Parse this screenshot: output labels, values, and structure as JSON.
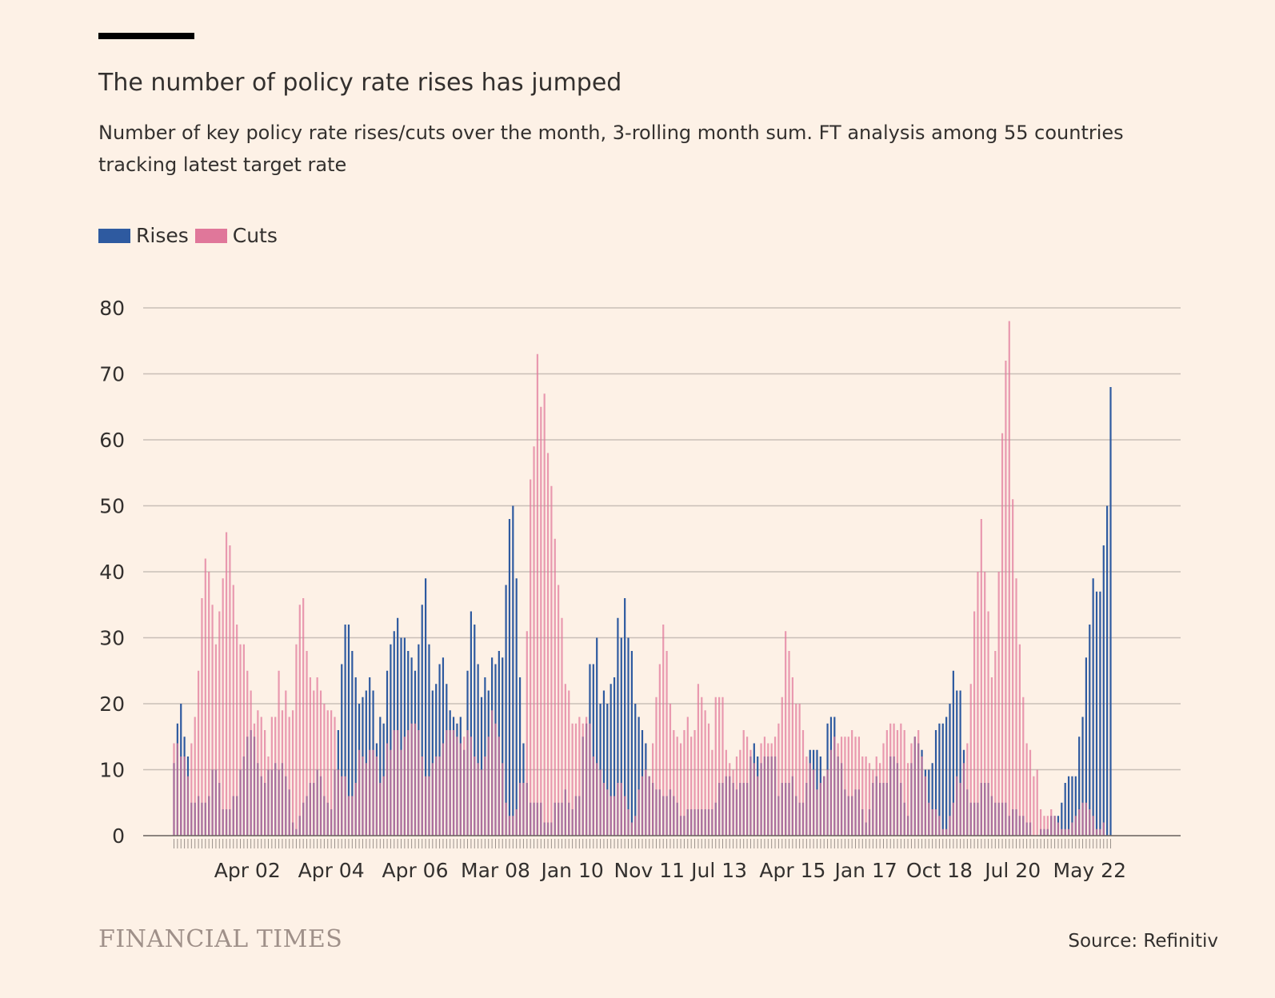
{
  "title": "The number of policy rate rises has jumped",
  "subtitle": "Number of key policy rate rises/cuts over the month, 3-rolling month sum. FT analysis among 55 countries tracking latest target rate",
  "source": "Source: Refinitiv",
  "brand": "FINANCIAL TIMES",
  "colors": {
    "background": "#fdf1e6",
    "rises": "#2e5aa0",
    "cuts": "#e0779a",
    "grid": "#c9bfb7",
    "text": "#33302e"
  },
  "chart_data": {
    "type": "bar",
    "title": "The number of policy rate rises has jumped",
    "xlabel": "",
    "ylabel": "",
    "ylim": [
      0,
      80
    ],
    "yticks": [
      0,
      10,
      20,
      30,
      40,
      50,
      60,
      70,
      80
    ],
    "grid": true,
    "legend_position": "top-left",
    "x_tick_labels": [
      {
        "label": "Apr 02",
        "index": 21
      },
      {
        "label": "Apr 04",
        "index": 45
      },
      {
        "label": "Apr 06",
        "index": 69
      },
      {
        "label": "Mar 08",
        "index": 92
      },
      {
        "label": "Jan 10",
        "index": 114
      },
      {
        "label": "Nov 11",
        "index": 136
      },
      {
        "label": "Jul 13",
        "index": 156
      },
      {
        "label": "Apr 15",
        "index": 177
      },
      {
        "label": "Jan 17",
        "index": 198
      },
      {
        "label": "Oct 18",
        "index": 219
      },
      {
        "label": "Jul 20",
        "index": 240
      },
      {
        "label": "May 22",
        "index": 262
      }
    ],
    "series": [
      {
        "name": "Rises",
        "values": [
          11,
          17,
          20,
          15,
          12,
          5,
          5,
          6,
          5,
          5,
          6,
          10,
          10,
          8,
          4,
          4,
          4,
          6,
          6,
          10,
          12,
          15,
          16,
          15,
          11,
          9,
          8,
          10,
          10,
          11,
          10,
          11,
          9,
          7,
          2,
          1,
          3,
          5,
          6,
          8,
          8,
          10,
          9,
          6,
          5,
          4,
          10,
          16,
          26,
          32,
          32,
          28,
          24,
          20,
          21,
          22,
          24,
          22,
          14,
          18,
          17,
          25,
          29,
          31,
          33,
          30,
          30,
          28,
          27,
          25,
          29,
          35,
          39,
          29,
          22,
          23,
          26,
          27,
          23,
          19,
          18,
          17,
          18,
          13,
          25,
          34,
          32,
          26,
          21,
          24,
          22,
          27,
          26,
          28,
          27,
          38,
          48,
          50,
          39,
          24,
          14,
          8,
          5,
          5,
          5,
          5,
          2,
          2,
          2,
          5,
          5,
          5,
          7,
          5,
          4,
          6,
          6,
          15,
          17,
          26,
          26,
          30,
          20,
          22,
          20,
          23,
          24,
          33,
          30,
          36,
          30,
          28,
          20,
          18,
          16,
          14,
          9,
          8,
          7,
          7,
          6,
          6,
          7,
          6,
          5,
          3,
          3,
          4,
          4,
          4,
          4,
          4,
          4,
          4,
          4,
          5,
          8,
          8,
          9,
          9,
          8,
          7,
          8,
          8,
          8,
          12,
          14,
          12,
          11,
          12,
          12,
          12,
          12,
          6,
          8,
          8,
          8,
          9,
          6,
          5,
          5,
          8,
          13,
          13,
          13,
          12,
          9,
          17,
          18,
          18,
          12,
          11,
          7,
          6,
          6,
          7,
          7,
          4,
          2,
          4,
          8,
          9,
          8,
          8,
          8,
          12,
          12,
          11,
          8,
          5,
          3,
          11,
          15,
          14,
          13,
          10,
          10,
          11,
          16,
          17,
          17,
          18,
          20,
          25,
          22,
          22,
          13,
          7,
          5,
          5,
          5,
          8,
          8,
          8,
          6,
          5,
          5,
          5,
          5,
          3,
          4,
          4,
          3,
          3,
          2,
          2,
          0,
          0,
          1,
          1,
          1,
          3,
          3,
          3,
          5,
          8,
          9,
          9,
          9,
          15,
          18,
          27,
          32,
          39,
          37,
          37,
          44,
          50,
          68
        ]
      },
      {
        "name": "Cuts",
        "values": [
          14,
          14,
          12,
          12,
          9,
          14,
          18,
          25,
          36,
          42,
          40,
          35,
          29,
          34,
          39,
          46,
          44,
          38,
          32,
          29,
          29,
          25,
          22,
          17,
          19,
          18,
          16,
          12,
          18,
          18,
          25,
          19,
          22,
          18,
          19,
          29,
          35,
          36,
          28,
          24,
          22,
          24,
          22,
          20,
          19,
          19,
          18,
          10,
          9,
          9,
          6,
          6,
          8,
          13,
          12,
          11,
          13,
          13,
          12,
          8,
          9,
          14,
          13,
          16,
          16,
          13,
          15,
          16,
          17,
          17,
          16,
          12,
          9,
          9,
          11,
          12,
          12,
          14,
          16,
          16,
          16,
          15,
          14,
          15,
          16,
          15,
          12,
          11,
          10,
          12,
          15,
          19,
          17,
          15,
          11,
          5,
          3,
          3,
          4,
          8,
          8,
          31,
          54,
          59,
          73,
          65,
          67,
          58,
          53,
          45,
          38,
          33,
          23,
          22,
          17,
          17,
          18,
          17,
          18,
          17,
          12,
          11,
          10,
          8,
          7,
          6,
          6,
          8,
          8,
          6,
          4,
          2,
          3,
          7,
          9,
          10,
          9,
          14,
          21,
          26,
          32,
          28,
          20,
          16,
          15,
          14,
          16,
          18,
          15,
          16,
          23,
          21,
          19,
          17,
          13,
          21,
          21,
          21,
          13,
          11,
          10,
          12,
          13,
          16,
          15,
          13,
          11,
          9,
          14,
          15,
          14,
          14,
          15,
          17,
          21,
          31,
          28,
          24,
          20,
          20,
          16,
          12,
          11,
          10,
          7,
          8,
          9,
          10,
          13,
          15,
          14,
          15,
          15,
          15,
          16,
          15,
          15,
          12,
          12,
          11,
          10,
          12,
          11,
          14,
          16,
          17,
          17,
          16,
          17,
          16,
          11,
          14,
          15,
          16,
          12,
          9,
          5,
          4,
          4,
          3,
          1,
          1,
          3,
          5,
          9,
          8,
          11,
          14,
          23,
          34,
          40,
          48,
          40,
          34,
          24,
          28,
          40,
          61,
          72,
          78,
          51,
          39,
          29,
          21,
          14,
          13,
          9,
          10,
          4,
          3,
          3,
          4,
          3,
          2,
          1,
          1,
          1,
          2,
          3,
          4,
          5,
          5,
          4,
          3,
          1,
          1,
          2
        ]
      }
    ]
  }
}
